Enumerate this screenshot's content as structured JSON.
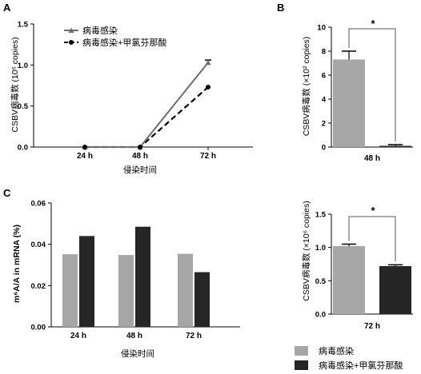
{
  "colors": {
    "infected": "#a6a6a6",
    "treated": "#262626",
    "line_infected": "#6e6e6e",
    "line_treated": "#000000"
  },
  "panels": {
    "A": {
      "letter": "A",
      "ylabel": "CSBV病毒数 (10⁶ copies)",
      "xlabel": "侵染时间"
    },
    "B": {
      "letter": "B",
      "ylabel": "CSBV病毒数 (×10² copies)",
      "xlabel": "48 h",
      "sig": "*"
    },
    "C": {
      "letter": "C",
      "ylabel": "m⁶A/A in mRNA (%)",
      "xlabel": "侵染时间"
    },
    "D": {
      "ylabel": "CSBV病毒数 (×10⁶ copies)",
      "xlabel": "72 h",
      "sig": "*"
    }
  },
  "legend_a": [
    "病毒感染",
    "病毒感染+甲氯芬那酸"
  ],
  "legend_bottom": [
    "病毒感染",
    "病毒感染+甲氯芬那酸"
  ],
  "chart_data": [
    {
      "panel": "A",
      "type": "line",
      "categories": [
        "24 h",
        "48 h",
        "72 h"
      ],
      "series": [
        {
          "name": "病毒感染",
          "values": [
            0,
            0,
            1.03
          ],
          "errors": [
            0,
            0,
            0.03
          ],
          "style": "solid",
          "marker": "triangle"
        },
        {
          "name": "病毒感染+甲氯芬那酸",
          "values": [
            0,
            0,
            0.73
          ],
          "errors": [
            0,
            0,
            0
          ],
          "style": "dashed",
          "marker": "circle"
        }
      ],
      "ylim": [
        0,
        1.5
      ],
      "yticks": [
        "0.0",
        "0.5",
        "1.0",
        "1.5"
      ],
      "xlabel": "侵染时间",
      "ylabel": "CSBV病毒数 (10⁶ copies)",
      "legend": "top-left"
    },
    {
      "panel": "B",
      "type": "bar",
      "categories": [
        "病毒感染",
        "病毒感染+甲氯芬那酸"
      ],
      "values": [
        7.3,
        0.1
      ],
      "errors": [
        0.7,
        0.1
      ],
      "ylim": [
        0,
        10
      ],
      "yticks": [
        "0",
        "2",
        "4",
        "6",
        "8",
        "10"
      ],
      "xlabel": "48 h",
      "ylabel": "CSBV病毒数 (×10² copies)",
      "significance": "*"
    },
    {
      "panel": "C",
      "type": "bar",
      "categories": [
        "24 h",
        "48 h",
        "72 h"
      ],
      "series": [
        {
          "name": "病毒感染",
          "values": [
            0.0352,
            0.0348,
            0.0354
          ]
        },
        {
          "name": "病毒感染+甲氯芬那酸",
          "values": [
            0.044,
            0.0485,
            0.0265
          ]
        }
      ],
      "ylim": [
        0,
        0.06
      ],
      "yticks": [
        "0.00",
        "0.02",
        "0.04",
        "0.06"
      ],
      "xlabel": "侵染时间",
      "ylabel": "m⁶A/A in mRNA (%)"
    },
    {
      "panel": "D",
      "type": "bar",
      "categories": [
        "病毒感染",
        "病毒感染+甲氯芬那酸"
      ],
      "values": [
        1.02,
        0.72
      ],
      "errors": [
        0.03,
        0.02
      ],
      "ylim": [
        0,
        1.5
      ],
      "yticks": [
        "0.0",
        "0.5",
        "1.0",
        "1.5"
      ],
      "xlabel": "72 h",
      "ylabel": "CSBV病毒数 (×10⁶ copies)",
      "significance": "*"
    }
  ]
}
